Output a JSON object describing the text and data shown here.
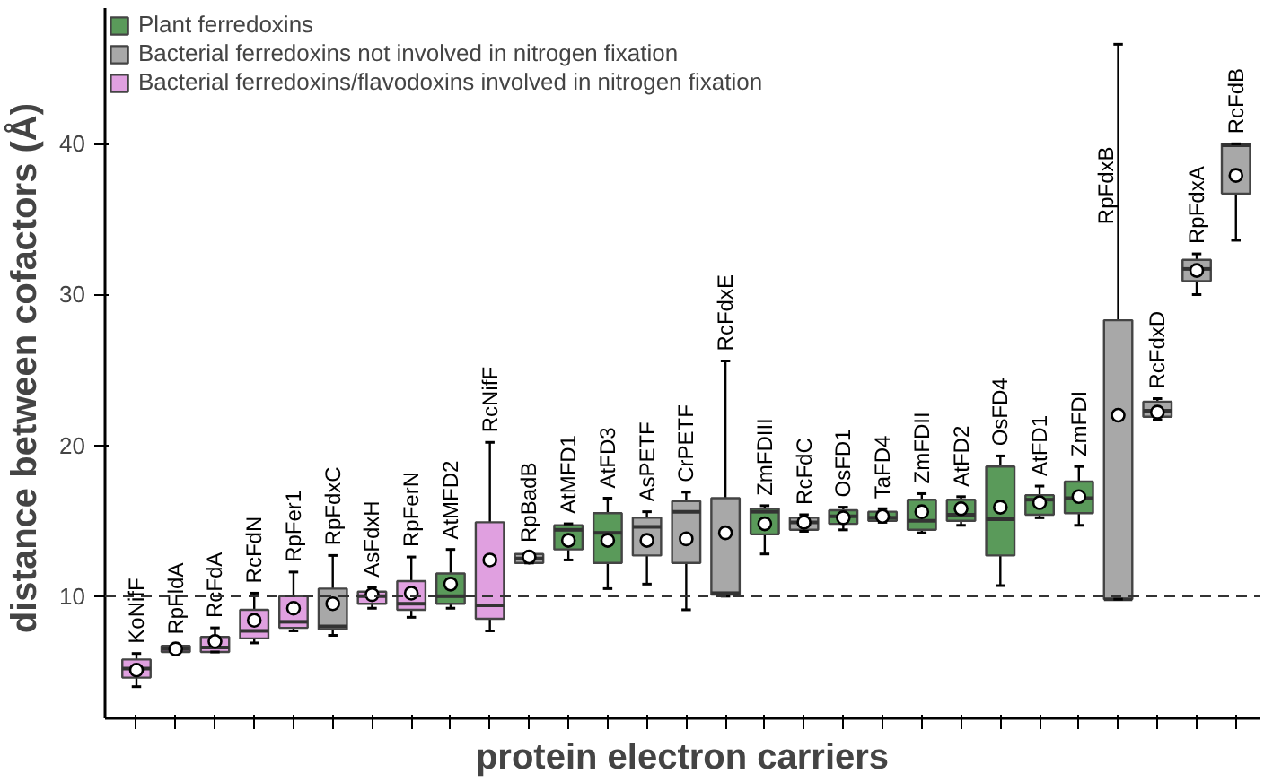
{
  "chart_data": {
    "type": "box",
    "ylabel": "distance between cofactors  (Å)",
    "xlabel": "protein electron carriers",
    "categories": [
      "KoNifF",
      "RpFldA",
      "RcFdA",
      "RcFdN",
      "RpFer1",
      "RpFdxC",
      "AsFdxH",
      "RpFerN",
      "AtMFD2",
      "RcNifF",
      "RpBadB",
      "AtMFD1",
      "AtFD3",
      "AsPETF",
      "CrPETF",
      "RcFdxE",
      "ZmFDIII",
      "RcFdC",
      "OsFD1",
      "TaFD4",
      "ZmFDII",
      "AtFD2",
      "OsFD4",
      "AtFD1",
      "ZmFDI",
      "RpFdxB",
      "RcFdxD",
      "RpFdxA",
      "RcFdB"
    ],
    "ylim": [
      1.9,
      49
    ],
    "yticks": [
      10,
      20,
      30,
      40
    ],
    "tick_labels": "y",
    "grid": false,
    "legend": "top left",
    "ref_lines": [
      {
        "axis": "y",
        "value": 10,
        "line_style": "dashed",
        "color": "#333333"
      }
    ],
    "series": [
      {
        "name": "Plant ferredoxins",
        "color": "#5a9a5a",
        "boxes": [
          null,
          null,
          null,
          null,
          null,
          null,
          null,
          null,
          {
            "low": 9.2,
            "q1": 9.5,
            "median": 10.0,
            "q3": 11.5,
            "high": 13.1,
            "mean": 10.8
          },
          null,
          null,
          {
            "low": 12.4,
            "q1": 13.1,
            "median": 14.4,
            "q3": 14.7,
            "high": 14.8,
            "mean": 13.7
          },
          {
            "low": 10.5,
            "q1": 12.2,
            "median": 14.2,
            "q3": 15.5,
            "high": 16.5,
            "mean": 13.7
          },
          null,
          null,
          null,
          {
            "low": 12.8,
            "q1": 14.1,
            "median": 15.6,
            "q3": 15.8,
            "high": 16.0,
            "mean": 14.8
          },
          null,
          {
            "low": 14.4,
            "q1": 14.8,
            "median": 15.3,
            "q3": 15.7,
            "high": 15.9,
            "mean": 15.2
          },
          {
            "low": 14.9,
            "q1": 15.0,
            "median": 15.2,
            "q3": 15.6,
            "high": 15.8,
            "mean": 15.3
          },
          {
            "low": 14.2,
            "q1": 14.4,
            "median": 15.0,
            "q3": 16.4,
            "high": 16.8,
            "mean": 15.6
          },
          {
            "low": 14.7,
            "q1": 15.0,
            "median": 15.4,
            "q3": 16.4,
            "high": 16.6,
            "mean": 15.8
          },
          {
            "low": 10.7,
            "q1": 12.7,
            "median": 15.1,
            "q3": 18.6,
            "high": 19.3,
            "mean": 15.9
          },
          {
            "low": 15.2,
            "q1": 15.4,
            "median": 16.4,
            "q3": 16.7,
            "high": 17.3,
            "mean": 16.2
          },
          {
            "low": 14.7,
            "q1": 15.5,
            "median": 16.5,
            "q3": 17.6,
            "high": 18.6,
            "mean": 16.6
          },
          null,
          null,
          null,
          null
        ]
      },
      {
        "name": "Bacterial ferredoxins not involved in nitrogen fixation",
        "color": "#a8a8a8",
        "boxes": [
          null,
          null,
          null,
          null,
          null,
          {
            "low": 7.4,
            "q1": 7.8,
            "median": 8.0,
            "q3": 10.5,
            "high": 12.7,
            "mean": 9.5
          },
          null,
          null,
          null,
          null,
          {
            "low": 12.2,
            "q1": 12.2,
            "median": 12.5,
            "q3": 12.8,
            "high": 12.9,
            "mean": 12.6
          },
          null,
          null,
          {
            "low": 10.8,
            "q1": 12.7,
            "median": 14.6,
            "q3": 15.2,
            "high": 15.6,
            "mean": 13.7
          },
          {
            "low": 9.1,
            "q1": 12.2,
            "median": 15.6,
            "q3": 16.3,
            "high": 16.9,
            "mean": 13.8
          },
          {
            "low": 10.0,
            "q1": 10.1,
            "median": 10.2,
            "q3": 16.5,
            "high": 25.6,
            "mean": 14.2
          },
          null,
          {
            "low": 14.3,
            "q1": 14.4,
            "median": 14.9,
            "q3": 15.2,
            "high": 15.4,
            "mean": 14.9
          },
          null,
          null,
          null,
          null,
          null,
          null,
          null,
          {
            "low": 9.8,
            "q1": 9.8,
            "median": 9.8,
            "q3": 28.3,
            "high": 46.6,
            "mean": 22.0
          },
          {
            "low": 21.7,
            "q1": 21.9,
            "median": 22.3,
            "q3": 22.9,
            "high": 23.1,
            "mean": 22.2
          },
          {
            "low": 30.0,
            "q1": 30.9,
            "median": 31.7,
            "q3": 32.3,
            "high": 32.7,
            "mean": 31.6
          },
          {
            "low": 33.6,
            "q1": 36.7,
            "median": 39.9,
            "q3": 40.0,
            "high": 40.0,
            "mean": 37.9
          }
        ]
      },
      {
        "name": "Bacterial ferredoxins/flavodoxins involved in nitrogen fixation",
        "color": "#e0a0e0",
        "boxes": [
          {
            "low": 4.0,
            "q1": 4.6,
            "median": 5.2,
            "q3": 5.8,
            "high": 6.2,
            "mean": 5.1
          },
          {
            "low": 6.2,
            "q1": 6.3,
            "median": 6.5,
            "q3": 6.7,
            "high": 6.8,
            "mean": 6.5
          },
          {
            "low": 6.3,
            "q1": 6.3,
            "median": 6.6,
            "q3": 7.3,
            "high": 7.9,
            "mean": 7.0
          },
          {
            "low": 6.9,
            "q1": 7.2,
            "median": 7.7,
            "q3": 9.1,
            "high": 10.2,
            "mean": 8.4
          },
          {
            "low": 7.7,
            "q1": 7.9,
            "median": 8.3,
            "q3": 10.0,
            "high": 11.6,
            "mean": 9.2
          },
          null,
          {
            "low": 9.2,
            "q1": 9.5,
            "median": 10.0,
            "q3": 10.3,
            "high": 10.6,
            "mean": 10.1
          },
          {
            "low": 8.6,
            "q1": 9.1,
            "median": 9.5,
            "q3": 11.0,
            "high": 12.6,
            "mean": 10.2
          },
          null,
          {
            "low": 7.7,
            "q1": 8.5,
            "median": 9.4,
            "q3": 14.9,
            "high": 20.2,
            "mean": 12.4
          },
          null,
          null,
          null,
          null,
          null,
          null,
          null,
          null,
          null,
          null,
          null,
          null,
          null,
          null,
          null,
          null,
          null,
          null,
          null
        ]
      }
    ]
  }
}
